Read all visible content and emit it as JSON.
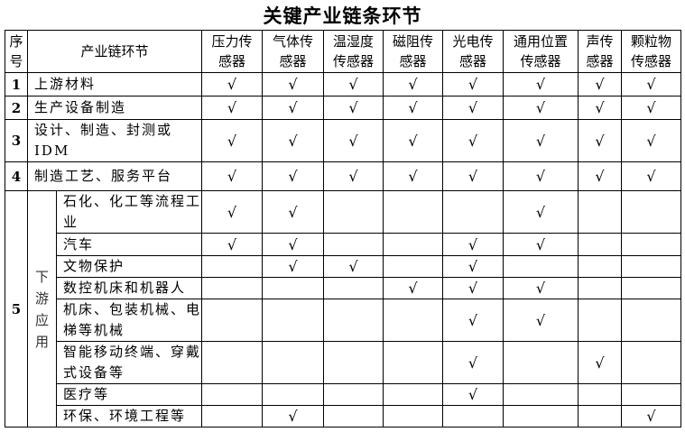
{
  "title": "关键产业链条环节",
  "headers": {
    "seq": "序号",
    "chain": "产业链环节",
    "sensors": [
      "压力传感器",
      "气体传感器",
      "温湿度传感器",
      "磁阻传感器",
      "光电传感器",
      "通用位置传感器",
      "声传感器",
      "颗粒物传感器"
    ]
  },
  "check_mark": "√",
  "rows": [
    {
      "seq": "1",
      "label": "上游材料",
      "checks": [
        true,
        true,
        true,
        true,
        true,
        true,
        true,
        true
      ]
    },
    {
      "seq": "2",
      "label": "生产设备制造",
      "checks": [
        true,
        true,
        true,
        true,
        true,
        true,
        true,
        true
      ]
    },
    {
      "seq": "3",
      "label": "设计、制造、封测或IDM",
      "checks": [
        true,
        true,
        true,
        true,
        true,
        true,
        true,
        true
      ]
    },
    {
      "seq": "4",
      "label": "制造工艺、服务平台",
      "checks": [
        true,
        true,
        true,
        true,
        true,
        true,
        true,
        true
      ]
    }
  ],
  "group": {
    "seq": "5",
    "label": "下游应用",
    "rows": [
      {
        "label": "石化、化工等流程工业",
        "checks": [
          true,
          true,
          false,
          false,
          false,
          true,
          false,
          false
        ]
      },
      {
        "label": "汽车",
        "checks": [
          true,
          true,
          false,
          false,
          true,
          true,
          false,
          false
        ]
      },
      {
        "label": "文物保护",
        "checks": [
          false,
          true,
          true,
          false,
          true,
          false,
          false,
          false
        ]
      },
      {
        "label": "数控机床和机器人",
        "checks": [
          false,
          false,
          false,
          true,
          true,
          true,
          false,
          false
        ]
      },
      {
        "label": "机床、包装机械、电梯等机械",
        "checks": [
          false,
          false,
          false,
          false,
          true,
          true,
          false,
          false
        ]
      },
      {
        "label": "智能移动终端、穿戴式设备等",
        "checks": [
          false,
          false,
          false,
          false,
          true,
          false,
          true,
          false
        ]
      },
      {
        "label": "医疗等",
        "checks": [
          false,
          false,
          false,
          false,
          true,
          false,
          false,
          false
        ]
      },
      {
        "label": "环保、环境工程等",
        "checks": [
          false,
          true,
          false,
          false,
          false,
          false,
          false,
          true
        ]
      }
    ]
  }
}
